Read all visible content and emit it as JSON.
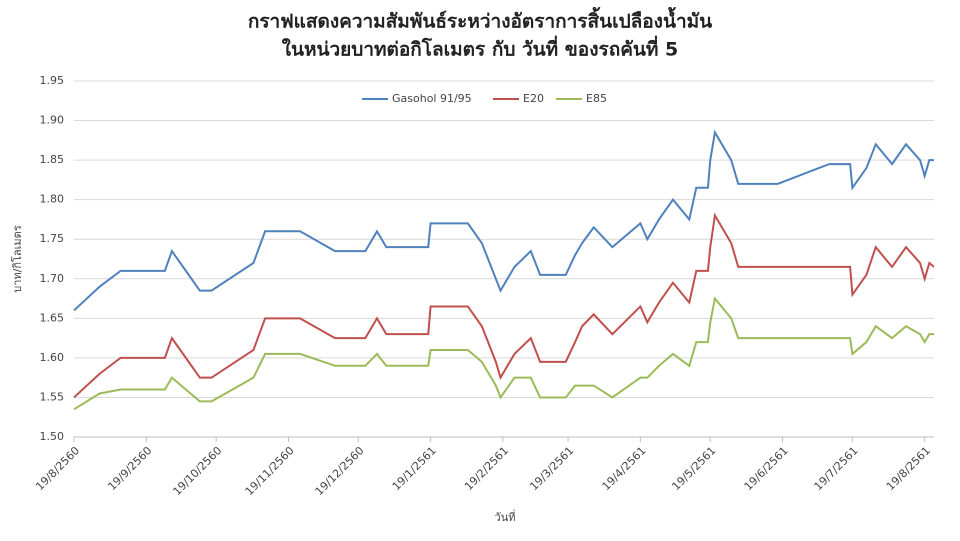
{
  "chart_data": {
    "type": "line",
    "title": [
      "กราฟแสดงความสัมพันธ์ระหว่างอัตราการสิ้นเปลืองน้ำมัน",
      "ในหน่วยบาทต่อกิโลเมตร  กับ วันที่ ของรถคันที่ 5"
    ],
    "x_label": "วันที่",
    "y_label": "บาท/กิโลเมตร",
    "x": [
      "19/8/2560",
      "30/8/2560",
      "8/9/2560",
      "27/9/2560",
      "30/9/2560",
      "6/10/2560",
      "12/10/2560",
      "17/10/2560",
      "4/11/2560",
      "9/11/2560",
      "24/11/2560",
      "9/12/2560",
      "22/12/2560",
      "27/12/2560",
      "31/12/2560",
      "18/1/2561",
      "19/1/2561",
      "4/2/2561",
      "10/2/2561",
      "16/2/2561",
      "18/2/2561",
      "24/2/2561",
      "3/3/2561",
      "7/3/2561",
      "18/3/2561",
      "22/3/2561",
      "25/3/2561",
      "30/3/2561",
      "7/4/2561",
      "19/4/2561",
      "22/4/2561",
      "27/4/2561",
      "3/5/2561",
      "10/5/2561",
      "13/5/2561",
      "18/5/2561",
      "19/5/2561",
      "21/5/2561",
      "28/5/2561",
      "31/5/2561",
      "17/6/2561",
      "9/7/2561",
      "18/7/2561",
      "19/7/2561",
      "25/7/2561",
      "29/7/2561",
      "5/8/2561",
      "11/8/2561",
      "17/8/2561",
      "19/8/2561",
      "21/8/2561",
      "23/8/2561"
    ],
    "series": [
      {
        "name": "Gasohol 91/95",
        "color": "#4f81bd",
        "values": [
          1.66,
          1.69,
          1.71,
          1.71,
          1.735,
          1.71,
          1.685,
          1.685,
          1.72,
          1.76,
          1.76,
          1.735,
          1.735,
          1.76,
          1.74,
          1.74,
          1.77,
          1.77,
          1.745,
          1.7,
          1.685,
          1.715,
          1.735,
          1.705,
          1.705,
          1.73,
          1.745,
          1.765,
          1.74,
          1.77,
          1.75,
          1.775,
          1.8,
          1.775,
          1.815,
          1.815,
          1.85,
          1.885,
          1.85,
          1.82,
          1.82,
          1.845,
          1.845,
          1.815,
          1.84,
          1.87,
          1.845,
          1.87,
          1.85,
          1.83,
          1.85,
          1.85
        ]
      },
      {
        "name": "E20",
        "color": "#c0504d",
        "values": [
          1.55,
          1.58,
          1.6,
          1.6,
          1.625,
          1.6,
          1.575,
          1.575,
          1.61,
          1.65,
          1.65,
          1.625,
          1.625,
          1.65,
          1.63,
          1.63,
          1.665,
          1.665,
          1.64,
          1.595,
          1.575,
          1.605,
          1.625,
          1.595,
          1.595,
          1.62,
          1.64,
          1.655,
          1.63,
          1.665,
          1.645,
          1.67,
          1.695,
          1.67,
          1.71,
          1.71,
          1.74,
          1.78,
          1.745,
          1.715,
          1.715,
          1.715,
          1.715,
          1.68,
          1.705,
          1.74,
          1.715,
          1.74,
          1.72,
          1.7,
          1.72,
          1.715
        ]
      },
      {
        "name": "E85",
        "color": "#9bbb59",
        "values": [
          1.535,
          1.555,
          1.56,
          1.56,
          1.575,
          1.56,
          1.545,
          1.545,
          1.575,
          1.605,
          1.605,
          1.59,
          1.59,
          1.605,
          1.59,
          1.59,
          1.61,
          1.61,
          1.595,
          1.565,
          1.55,
          1.575,
          1.575,
          1.55,
          1.55,
          1.565,
          1.565,
          1.565,
          1.55,
          1.575,
          1.575,
          1.59,
          1.605,
          1.59,
          1.62,
          1.62,
          1.645,
          1.675,
          1.65,
          1.625,
          1.625,
          1.625,
          1.625,
          1.605,
          1.62,
          1.64,
          1.625,
          1.64,
          1.63,
          1.62,
          1.63,
          1.63
        ]
      }
    ],
    "xlim": [
      "19/8/2560",
      "23/8/2561"
    ],
    "xticks": [
      "19/8/2560",
      "19/9/2560",
      "19/10/2560",
      "19/11/2560",
      "19/12/2560",
      "19/1/2561",
      "19/2/2561",
      "19/3/2561",
      "19/4/2561",
      "19/5/2561",
      "19/6/2561",
      "19/7/2561",
      "19/8/2561"
    ],
    "ylim": [
      1.5,
      1.95
    ],
    "yticks": [
      {
        "value": 1.5,
        "label": "1.50"
      },
      {
        "value": 1.55,
        "label": "1.55"
      },
      {
        "value": 1.6,
        "label": "1.60"
      },
      {
        "value": 1.65,
        "label": "1.65"
      },
      {
        "value": 1.7,
        "label": "1.70"
      },
      {
        "value": 1.75,
        "label": "1.75"
      },
      {
        "value": 1.8,
        "label": "1.80"
      },
      {
        "value": 1.85,
        "label": "1.85"
      },
      {
        "value": 1.9,
        "label": "1.90"
      },
      {
        "value": 1.95,
        "label": "1.95"
      }
    ],
    "grid": true,
    "legend": "top"
  }
}
